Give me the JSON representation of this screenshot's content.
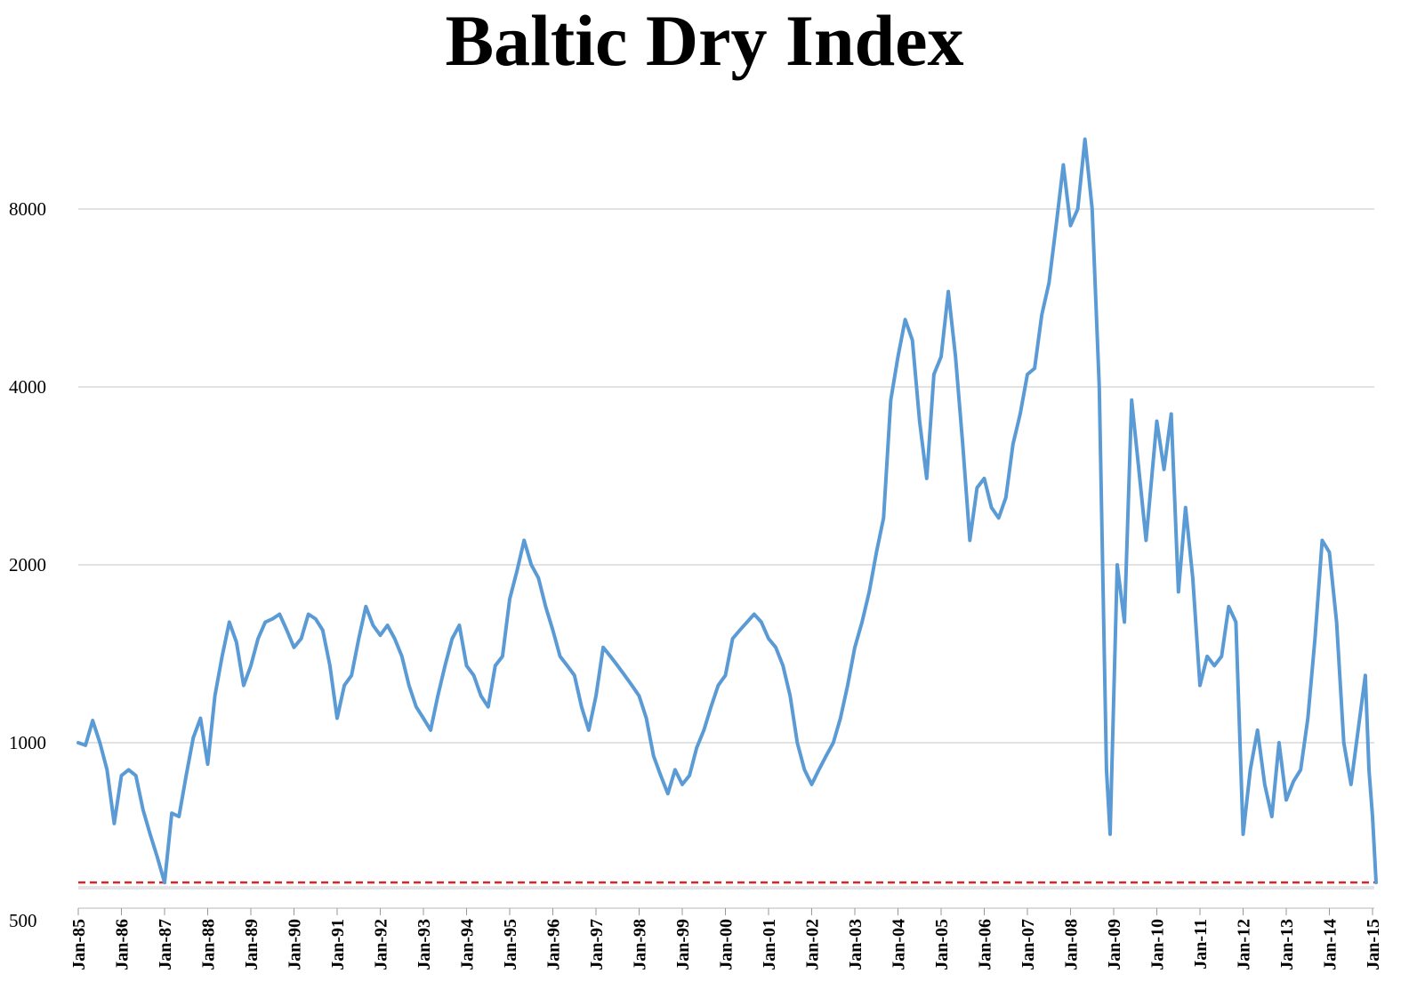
{
  "chart_data": {
    "type": "line",
    "title": "Baltic Dry Index",
    "xlabel": "",
    "ylabel": "",
    "y_scale": "log",
    "ylim": [
      500,
      10000
    ],
    "grid": true,
    "y_ticks": [
      500,
      1000,
      2000,
      4000,
      8000
    ],
    "x_ticks": [
      "Jan-85",
      "Jan-86",
      "Jan-87",
      "Jan-88",
      "Jan-89",
      "Jan-90",
      "Jan-91",
      "Jan-92",
      "Jan-93",
      "Jan-94",
      "Jan-95",
      "Jan-96",
      "Jan-97",
      "Jan-98",
      "Jan-99",
      "Jan-00",
      "Jan-01",
      "Jan-02",
      "Jan-03",
      "Jan-04",
      "Jan-05",
      "Jan-06",
      "Jan-07",
      "Jan-08",
      "Jan-09",
      "Jan-10",
      "Jan-11",
      "Jan-12",
      "Jan-13",
      "Jan-14",
      "Jan-15"
    ],
    "reference_line": {
      "value": 580,
      "color": "#d62728",
      "style": "dashed"
    },
    "series": [
      {
        "color": "#5b9bd5",
        "points": [
          [
            "1985-01",
            1000
          ],
          [
            "1985-03",
            990
          ],
          [
            "1985-05",
            1090
          ],
          [
            "1985-07",
            1000
          ],
          [
            "1985-09",
            900
          ],
          [
            "1985-11",
            730
          ],
          [
            "1986-01",
            880
          ],
          [
            "1986-03",
            900
          ],
          [
            "1986-05",
            880
          ],
          [
            "1986-07",
            770
          ],
          [
            "1986-09",
            700
          ],
          [
            "1986-11",
            640
          ],
          [
            "1987-01",
            580
          ],
          [
            "1987-03",
            760
          ],
          [
            "1987-05",
            750
          ],
          [
            "1987-07",
            880
          ],
          [
            "1987-09",
            1020
          ],
          [
            "1987-11",
            1100
          ],
          [
            "1988-01",
            920
          ],
          [
            "1988-03",
            1200
          ],
          [
            "1988-05",
            1400
          ],
          [
            "1988-07",
            1600
          ],
          [
            "1988-09",
            1480
          ],
          [
            "1988-11",
            1250
          ],
          [
            "1989-01",
            1350
          ],
          [
            "1989-03",
            1500
          ],
          [
            "1989-05",
            1600
          ],
          [
            "1989-07",
            1620
          ],
          [
            "1989-09",
            1650
          ],
          [
            "1989-11",
            1550
          ],
          [
            "1990-01",
            1450
          ],
          [
            "1990-03",
            1500
          ],
          [
            "1990-05",
            1650
          ],
          [
            "1990-07",
            1620
          ],
          [
            "1990-09",
            1550
          ],
          [
            "1990-11",
            1350
          ],
          [
            "1991-01",
            1100
          ],
          [
            "1991-03",
            1250
          ],
          [
            "1991-05",
            1300
          ],
          [
            "1991-07",
            1500
          ],
          [
            "1991-09",
            1700
          ],
          [
            "1991-11",
            1580
          ],
          [
            "1992-01",
            1520
          ],
          [
            "1992-03",
            1580
          ],
          [
            "1992-05",
            1500
          ],
          [
            "1992-07",
            1400
          ],
          [
            "1992-09",
            1250
          ],
          [
            "1992-11",
            1150
          ],
          [
            "1993-01",
            1100
          ],
          [
            "1993-03",
            1050
          ],
          [
            "1993-05",
            1200
          ],
          [
            "1993-07",
            1350
          ],
          [
            "1993-09",
            1500
          ],
          [
            "1993-11",
            1580
          ],
          [
            "1994-01",
            1350
          ],
          [
            "1994-03",
            1300
          ],
          [
            "1994-05",
            1200
          ],
          [
            "1994-07",
            1150
          ],
          [
            "1994-09",
            1350
          ],
          [
            "1994-11",
            1400
          ],
          [
            "1995-01",
            1750
          ],
          [
            "1995-03",
            1950
          ],
          [
            "1995-05",
            2200
          ],
          [
            "1995-07",
            2000
          ],
          [
            "1995-09",
            1900
          ],
          [
            "1995-11",
            1700
          ],
          [
            "1996-01",
            1550
          ],
          [
            "1996-03",
            1400
          ],
          [
            "1996-05",
            1350
          ],
          [
            "1996-07",
            1300
          ],
          [
            "1996-09",
            1150
          ],
          [
            "1996-11",
            1050
          ],
          [
            "1997-01",
            1200
          ],
          [
            "1997-03",
            1450
          ],
          [
            "1997-05",
            1400
          ],
          [
            "1997-07",
            1350
          ],
          [
            "1997-09",
            1300
          ],
          [
            "1997-11",
            1250
          ],
          [
            "1998-01",
            1200
          ],
          [
            "1998-03",
            1100
          ],
          [
            "1998-05",
            950
          ],
          [
            "1998-07",
            880
          ],
          [
            "1998-09",
            820
          ],
          [
            "1998-11",
            900
          ],
          [
            "1999-01",
            850
          ],
          [
            "1999-03",
            880
          ],
          [
            "1999-05",
            980
          ],
          [
            "1999-07",
            1050
          ],
          [
            "1999-09",
            1150
          ],
          [
            "1999-11",
            1250
          ],
          [
            "2000-01",
            1300
          ],
          [
            "2000-03",
            1500
          ],
          [
            "2000-05",
            1550
          ],
          [
            "2000-07",
            1600
          ],
          [
            "2000-09",
            1650
          ],
          [
            "2000-11",
            1600
          ],
          [
            "2001-01",
            1500
          ],
          [
            "2001-03",
            1450
          ],
          [
            "2001-05",
            1350
          ],
          [
            "2001-07",
            1200
          ],
          [
            "2001-09",
            1000
          ],
          [
            "2001-11",
            900
          ],
          [
            "2002-01",
            850
          ],
          [
            "2002-03",
            900
          ],
          [
            "2002-05",
            950
          ],
          [
            "2002-07",
            1000
          ],
          [
            "2002-09",
            1100
          ],
          [
            "2002-11",
            1250
          ],
          [
            "2003-01",
            1450
          ],
          [
            "2003-03",
            1600
          ],
          [
            "2003-05",
            1800
          ],
          [
            "2003-07",
            2100
          ],
          [
            "2003-09",
            2400
          ],
          [
            "2003-11",
            3800
          ],
          [
            "2004-01",
            4500
          ],
          [
            "2004-03",
            5200
          ],
          [
            "2004-05",
            4800
          ],
          [
            "2004-07",
            3500
          ],
          [
            "2004-09",
            2800
          ],
          [
            "2004-11",
            4200
          ],
          [
            "2005-01",
            4500
          ],
          [
            "2005-03",
            5800
          ],
          [
            "2005-05",
            4500
          ],
          [
            "2005-07",
            3200
          ],
          [
            "2005-09",
            2200
          ],
          [
            "2005-11",
            2700
          ],
          [
            "2006-01",
            2800
          ],
          [
            "2006-03",
            2500
          ],
          [
            "2006-05",
            2400
          ],
          [
            "2006-07",
            2600
          ],
          [
            "2006-09",
            3200
          ],
          [
            "2006-11",
            3600
          ],
          [
            "2007-01",
            4200
          ],
          [
            "2007-03",
            4300
          ],
          [
            "2007-05",
            5300
          ],
          [
            "2007-07",
            6000
          ],
          [
            "2007-09",
            7500
          ],
          [
            "2007-11",
            9500
          ],
          [
            "2008-01",
            7500
          ],
          [
            "2008-03",
            8000
          ],
          [
            "2008-05",
            10500
          ],
          [
            "2008-07",
            8000
          ],
          [
            "2008-09",
            4000
          ],
          [
            "2008-11",
            900
          ],
          [
            "2008-12",
            700
          ],
          [
            "2009-02",
            2000
          ],
          [
            "2009-04",
            1600
          ],
          [
            "2009-06",
            3800
          ],
          [
            "2009-08",
            2900
          ],
          [
            "2009-10",
            2200
          ],
          [
            "2010-01",
            3500
          ],
          [
            "2010-03",
            2900
          ],
          [
            "2010-05",
            3600
          ],
          [
            "2010-07",
            1800
          ],
          [
            "2010-09",
            2500
          ],
          [
            "2010-11",
            1900
          ],
          [
            "2011-01",
            1250
          ],
          [
            "2011-03",
            1400
          ],
          [
            "2011-05",
            1350
          ],
          [
            "2011-07",
            1400
          ],
          [
            "2011-09",
            1700
          ],
          [
            "2011-11",
            1600
          ],
          [
            "2012-01",
            700
          ],
          [
            "2012-03",
            900
          ],
          [
            "2012-05",
            1050
          ],
          [
            "2012-07",
            850
          ],
          [
            "2012-09",
            750
          ],
          [
            "2012-11",
            1000
          ],
          [
            "2013-01",
            800
          ],
          [
            "2013-03",
            860
          ],
          [
            "2013-05",
            900
          ],
          [
            "2013-07",
            1100
          ],
          [
            "2013-09",
            1500
          ],
          [
            "2013-11",
            2200
          ],
          [
            "2014-01",
            2100
          ],
          [
            "2014-03",
            1600
          ],
          [
            "2014-05",
            1000
          ],
          [
            "2014-07",
            850
          ],
          [
            "2014-09",
            1050
          ],
          [
            "2014-11",
            1300
          ],
          [
            "2014-12",
            900
          ],
          [
            "2015-01",
            750
          ],
          [
            "2015-02",
            580
          ]
        ]
      }
    ]
  }
}
